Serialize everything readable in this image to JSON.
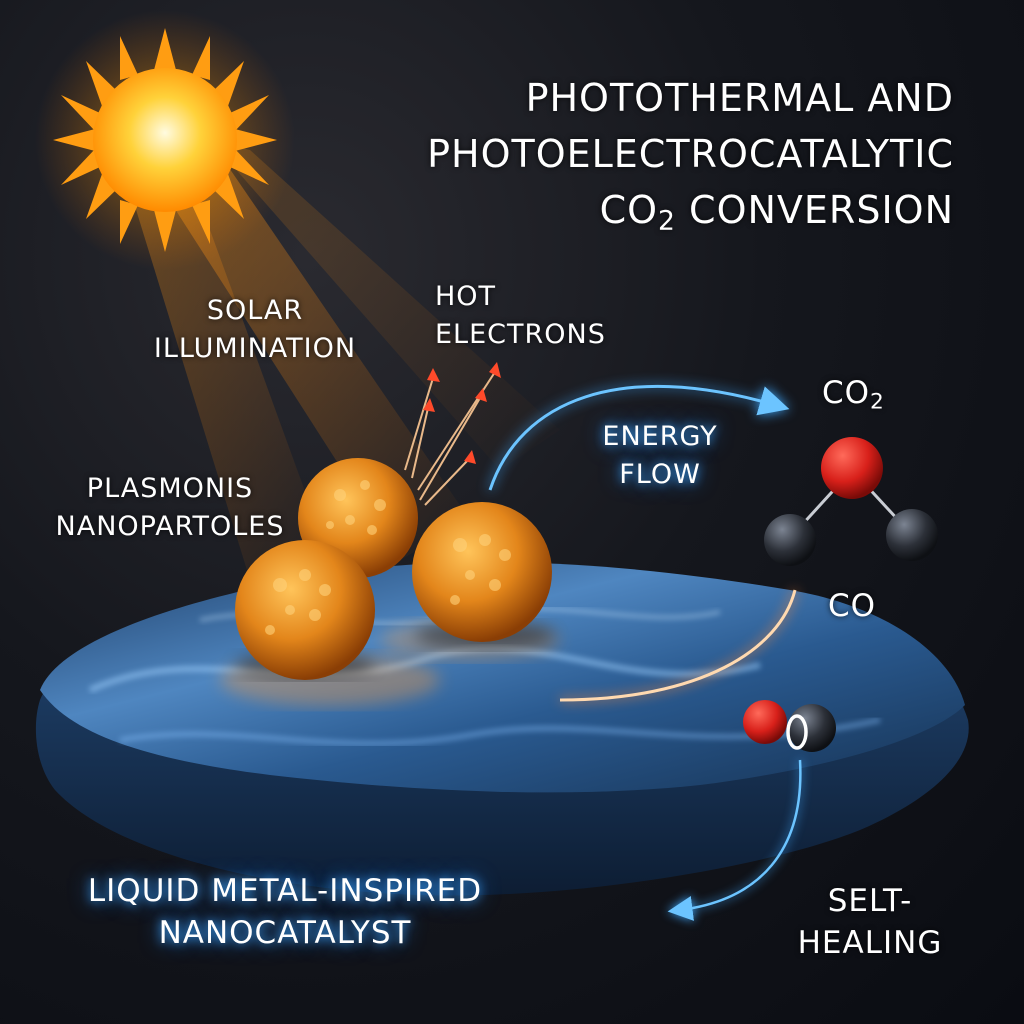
{
  "title": {
    "line1": "PHOTOTHERMAL AND",
    "line2": "PHOTOELECTROCATALYTIC",
    "line3_prefix": "CO",
    "line3_sub": "2",
    "line3_suffix": " CONVERSION"
  },
  "labels": {
    "solar_line1": "SOLAR",
    "solar_line2": "ILLUMINATION",
    "hot_line1": "HOT",
    "hot_line2": "ELECTRONS",
    "plasmonic_line1": "PLASMONIS",
    "plasmonic_line2": "NANOPARTOLES",
    "energy_line1": "ENERGY",
    "energy_line2": "FLOW",
    "co2_main": "CO",
    "co2_sub": "2",
    "co": "CO",
    "catalyst_line1": "LIQUID METAL-INSPIRED",
    "catalyst_line2": "NANOCATALYST",
    "self_line1": "SELT-",
    "self_line2": "HEALING"
  },
  "colors": {
    "sun": "#ffb300",
    "nanoparticle": "#e3861b",
    "liquid_metal": "#3b6ea8",
    "energy_flow": "#3fa9ff",
    "oxygen_atom": "#d8201a",
    "carbon_atom": "#2c3038"
  }
}
